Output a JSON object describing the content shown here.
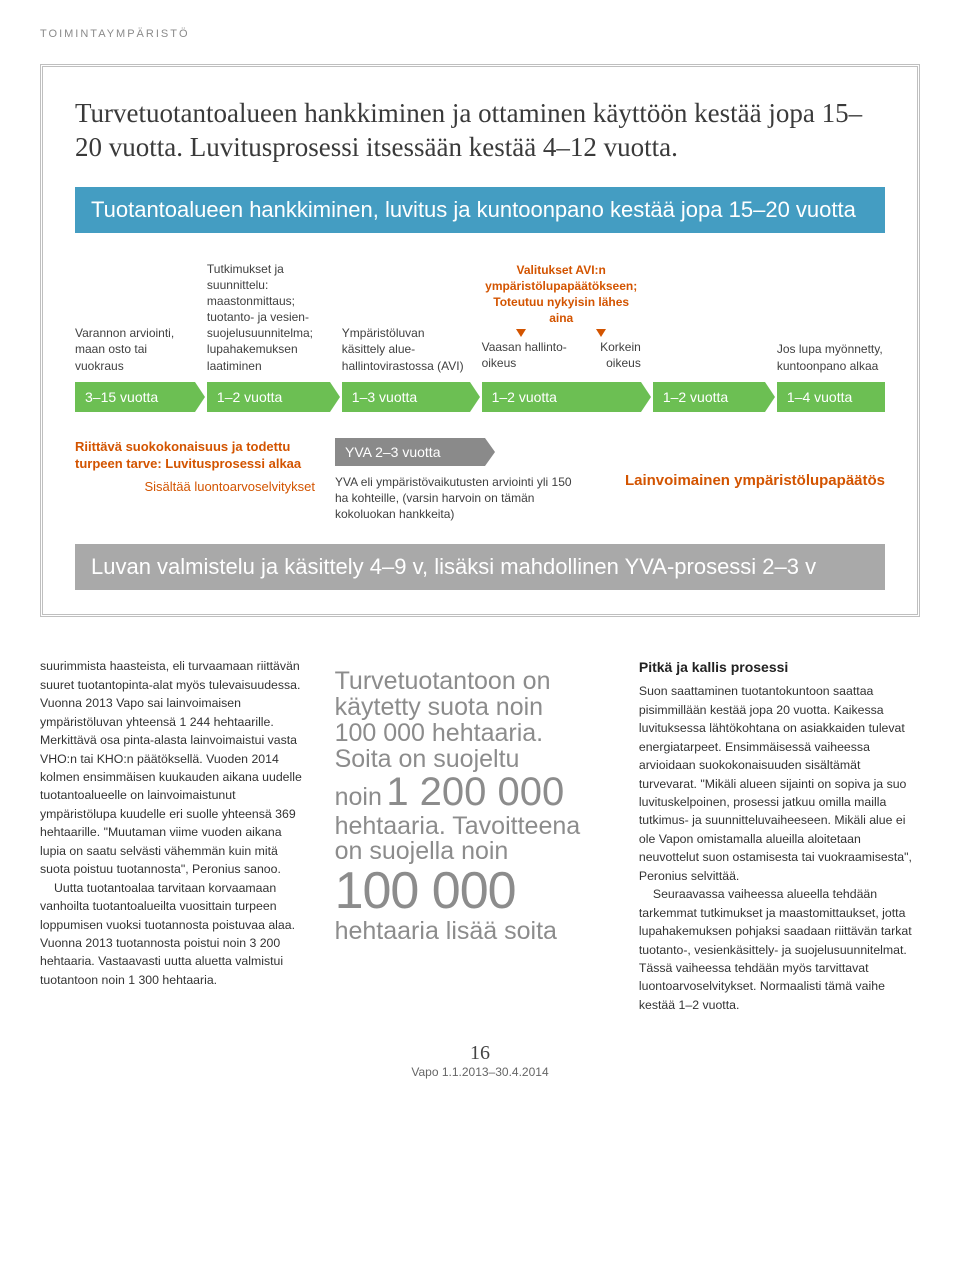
{
  "section_label": "TOIMINTAYMPÄRISTÖ",
  "intro": "Turvetuotantoalueen hankkiminen ja ottaminen käyttöön kestää jopa 15–20 vuotta. Luvitusprosessi itsessään kestää 4–12 vuotta.",
  "bluebar": "Tuotantoalueen hankkiminen, luvitus ja kuntoonpano kestää jopa 15–20 vuotta",
  "stages": [
    {
      "desc": "Varannon arviointi, maan osto tai vuokraus",
      "pill": "3–15 vuotta"
    },
    {
      "desc": "Tutkimukset ja suunnittelu: maastonmittaus; tuotanto- ja vesien­suojelusuunnitelma; lupahakemuksen laatiminen",
      "pill": "1–2 vuotta"
    },
    {
      "desc": "Ympäristöluvan käsittely alue­hallintovirastossa (AVI)",
      "pill": "1–3 vuotta"
    },
    {
      "desc": "",
      "pill": "1–2 vuotta"
    },
    {
      "desc": "",
      "pill": "1–2 vuotta"
    },
    {
      "desc": "Jos lupa myönnetty, kuntoonpano alkaa",
      "pill": "1–4 vuotta"
    }
  ],
  "appeal": {
    "top": "Valitukset AVI:n ympäristölupa­päätökseen; Toteutuu nykyisin lähes aina",
    "left": "Vaasan hallinto-oikeus",
    "right": "Korkein oikeus"
  },
  "annot": {
    "start1": "Riittävä suokokonaisuus ja todettu turpeen tarve: Luvitusprosessi alkaa",
    "start2": "Sisältää luontoarvo­selvitykset",
    "yva_pill": "YVA 2–3 vuotta",
    "yva_desc": "YVA eli ympäristövaikutusten arviointi yli 150 ha kohteille, (varsin harvoin on tämän kokoluokan hankkeita)",
    "right": "Lainvoimainen ympäristölupapäätös"
  },
  "summary": "Luvan valmistelu ja käsittely 4–9 v, lisäksi mahdollinen YVA-prosessi 2–3 v",
  "col1": {
    "p1": "suurimmista haasteista, eli turvaamaan riittävän suuret tuotantopinta-alat myös tulevaisuudessa. Vuonna 2013 Vapo sai lainvoimaisen ympäristöluvan yhteensä 1 244 hehtaarille. Merkittävä osa pinta-alasta lainvoimaistui vasta VHO:n tai KHO:n päätöksellä. Vuoden 2014 kolmen ensimmäisen kuukauden aikana uudelle tuotanto­alueelle on lainvoimaistunut ympäristölupa kuudelle eri suolle yhteensä 369 hehtaarille. \"Muutaman viime vuoden aikana lupia on saatu selvästi vähemmän kuin mitä suota poistuu tuotannosta\", Peronius sanoo.",
    "p2": "Uutta tuotantoalaa tarvitaan korvaamaan vanhoilta tuotantoalueilta vuosittain turpeen loppumisen vuoksi tuotannosta poistuvaa alaa. Vuonna 2013 tuotannosta poistui noin 3 200 hehtaaria. Vastaavasti uutta aluetta valmistui tuotantoon noin 1 300 hehtaaria."
  },
  "quote": {
    "l1": "Turvetuotantoon on",
    "l2": "käytetty suota noin",
    "l3": "100 000 hehtaaria.",
    "l4": "Soita on suojeltu",
    "l5a": "noin",
    "l5b": "1 200 000",
    "l6": "hehtaaria. Tavoitteena",
    "l7": "on suojella noin",
    "l8": "100 000",
    "l9": "hehtaaria lisää soita"
  },
  "col3": {
    "h": "Pitkä ja kallis prosessi",
    "p1": "Suon saattaminen tuotantokuntoon saattaa pisimmillään kestää jopa 20 vuotta. Kaikessa luvituksessa lähtökohtana on asiakkaiden tulevat energiatarpeet. Ensimmäisessä vaiheessa arvioidaan suokokonaisuuden sisältämät turvevarat. \"Mikäli alueen sijainti on sopiva ja suo luvituskelpoinen, prosessi jatkuu omilla mailla tutkimus- ja suunnittelu­vaiheeseen. Mikäli alue ei ole Vapon omistamalla alueilla aloitetaan neuvottelut suon ostamisesta tai vuokraamisesta\", Peronius selvittää.",
    "p2": "Seuraavassa vaiheessa alueella tehdään tarkemmat tutkimukset ja maastomittaukset, jotta lupahakemuksen pohjaksi saadaan riittävän tarkat tuotanto-, vesienkäsittely- ja suojelusuunnitelmat. Tässä vaiheessa tehdään myös tarvittavat luontoarvoselvitykset. Normaalisti tämä vaihe kestää 1–2 vuotta."
  },
  "footer": {
    "pagenum": "16",
    "issue": "Vapo 1.1.2013–30.4.2014"
  },
  "colors": {
    "green": "#6cbf53",
    "blue": "#449dc2",
    "orange": "#d35400",
    "grey": "#8a8a8a",
    "quote_grey": "#8c8c8c"
  }
}
